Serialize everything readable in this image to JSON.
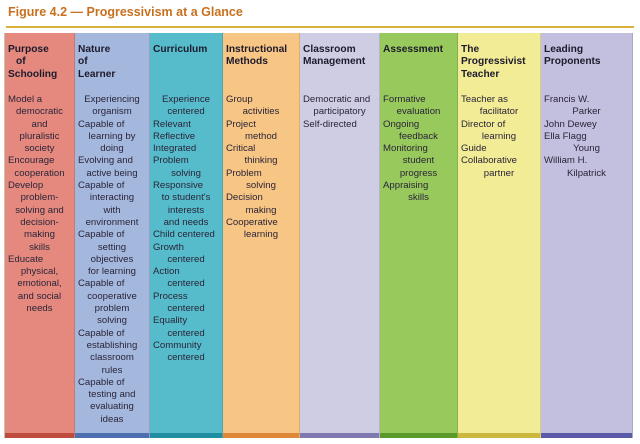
{
  "figure_title": "Figure 4.2 — Progressivism at a Glance",
  "columns": [
    {
      "header": [
        "Purpose",
        "of",
        "Schooling"
      ],
      "lines": [
        "Model a",
        "democratic",
        "and",
        "pluralistic",
        "society",
        "Encourage",
        "cooperation",
        "Develop",
        "problem-",
        "solving and",
        "decision-",
        "making",
        "skills",
        "Educate",
        "physical,",
        "emotional,",
        "and social",
        "needs"
      ],
      "bg": "#e5897e",
      "edge": "#bf4a3e"
    },
    {
      "header": [
        "Nature",
        "of",
        "Learner"
      ],
      "lines": [
        "Experiencing",
        "organism",
        "Capable of",
        "learning by",
        "doing",
        "Evolving and",
        "active being",
        "Capable of",
        "interacting",
        "with",
        "environment",
        "Capable of",
        "setting",
        "objectives",
        "for learning",
        "Capable of",
        "cooperative",
        "problem",
        "solving",
        "Capable of",
        "establishing",
        "classroom",
        "rules",
        "Capable of",
        "testing and",
        "evaluating",
        "ideas"
      ],
      "bg": "#a4b8de",
      "edge": "#4d6fb2"
    },
    {
      "header": [
        "Curriculum"
      ],
      "lines": [
        "Experience",
        "centered",
        "Relevant",
        "Reflective",
        "Integrated",
        "Problem",
        "solving",
        "Responsive",
        "to student's",
        "interests",
        "and needs",
        "Child centered",
        "Growth",
        "centered",
        "Action",
        "centered",
        "Process",
        "centered",
        "Equality",
        "centered",
        "Community",
        "centered"
      ],
      "bg": "#56bccb",
      "edge": "#1e8ea0"
    },
    {
      "header": [
        "Instructional",
        "Methods"
      ],
      "lines": [
        "Group",
        "activities",
        "Project",
        "method",
        "Critical",
        "thinking",
        "Problem",
        "solving",
        "Decision",
        "making",
        "Cooperative",
        "learning"
      ],
      "bg": "#f7c584",
      "edge": "#e0883a"
    },
    {
      "header": [
        "Classroom",
        "Management"
      ],
      "lines": [
        "Democratic and",
        "participatory",
        "Self-directed"
      ],
      "bg": "#cfcde4",
      "edge": "#8078b0"
    },
    {
      "header": [
        "Assessment"
      ],
      "lines": [
        "Formative",
        "evaluation",
        "Ongoing",
        "feedback",
        "Monitoring",
        "student",
        "progress",
        "Appraising",
        "skills"
      ],
      "bg": "#98c95c",
      "edge": "#5a9a2a"
    },
    {
      "header": [
        "The",
        "Progressivist",
        "Teacher"
      ],
      "lines": [
        "Teacher as",
        "facilitator",
        "Director of",
        "learning",
        "Guide",
        "Collaborative",
        "partner"
      ],
      "bg": "#f2ec96",
      "edge": "#ccb83e"
    },
    {
      "header": [
        "Leading",
        "Proponents"
      ],
      "lines": [
        "Francis W.",
        "Parker",
        "John Dewey",
        "Ella Flagg",
        "Young",
        "William H.",
        "Kilpatrick"
      ],
      "bg": "#c3c0df",
      "edge": "#5a5aa8"
    }
  ]
}
